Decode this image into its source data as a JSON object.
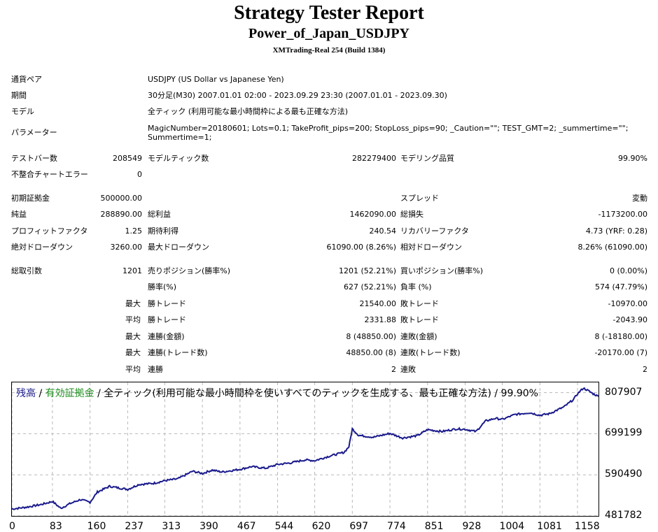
{
  "header": {
    "title": "Strategy Tester Report",
    "subtitle": "Power_of_Japan_USDJPY",
    "server": "XMTrading-Real 254 (Build 1384)"
  },
  "info": {
    "pair_label": "通貨ペア",
    "pair_value": "USDJPY (US Dollar vs Japanese Yen)",
    "period_label": "期間",
    "period_value": "30分足(M30) 2007.01.01 02:00 - 2023.09.29 23:30 (2007.01.01 - 2023.09.30)",
    "model_label": "モデル",
    "model_value": "全ティック (利用可能な最小時間枠による最も正確な方法)",
    "params_label": "パラメーター",
    "params_line1": "MagicNumber=20180601; Lots=0.1; TakeProfit_pips=200; StopLoss_pips=90; _Caution=\"\"; TEST_GMT=2; _summertime=\"\";",
    "params_line2": "Summertime=1;"
  },
  "stats": {
    "bars_label": "テストバー数",
    "bars_value": "208549",
    "ticks_label": "モデルティック数",
    "ticks_value": "282279400",
    "quality_label": "モデリング品質",
    "quality_value": "99.90%",
    "mismatch_label": "不整合チャートエラー",
    "mismatch_value": "0",
    "deposit_label": "初期証拠金",
    "deposit_value": "500000.00",
    "spread_label": "スプレッド",
    "spread_value": "変動",
    "net_label": "純益",
    "net_value": "288890.00",
    "gross_profit_label": "総利益",
    "gross_profit_value": "1462090.00",
    "gross_loss_label": "総損失",
    "gross_loss_value": "-1173200.00",
    "pf_label": "プロフィットファクタ",
    "pf_value": "1.25",
    "payoff_label": "期待利得",
    "payoff_value": "240.54",
    "recovery_label": "リカバリーファクタ",
    "recovery_value": "4.73 (YRF: 0.28)",
    "abs_dd_label": "絶対ドローダウン",
    "abs_dd_value": "3260.00",
    "max_dd_label": "最大ドローダウン",
    "max_dd_value": "61090.00 (8.26%)",
    "rel_dd_label": "相対ドローダウン",
    "rel_dd_value": "8.26% (61090.00)",
    "trades_label": "総取引数",
    "trades_value": "1201",
    "short_label": "売りポジション(勝率%)",
    "short_value": "1201 (52.21%)",
    "long_label": "買いポジション(勝率%)",
    "long_value": "0 (0.00%)",
    "win_label": "勝率(%)",
    "win_value": "627 (52.21%)",
    "loss_label": "負率 (%)",
    "loss_value": "574 (47.79%)",
    "max_word": "最大",
    "avg_word": "平均",
    "largest_win_label": "勝トレード",
    "largest_win_value": "21540.00",
    "largest_loss_label": "敗トレード",
    "largest_loss_value": "-10970.00",
    "avg_win_label": "勝トレード",
    "avg_win_value": "2331.88",
    "avg_loss_label": "敗トレード",
    "avg_loss_value": "-2043.90",
    "max_cons_win_label": "連勝(金額)",
    "max_cons_win_value": "8 (48850.00)",
    "max_cons_loss_label": "連敗(金額)",
    "max_cons_loss_value": "8 (-18180.00)",
    "max_cons_profit_label": "連勝(トレード数)",
    "max_cons_profit_value": "48850.00 (8)",
    "max_cons_lossamt_label": "連敗(トレード数)",
    "max_cons_lossamt_value": "-20170.00 (7)",
    "avg_cons_win_label": "連勝",
    "avg_cons_win_value": "2",
    "avg_cons_loss_label": "連敗",
    "avg_cons_loss_value": "2"
  },
  "chart_legend": {
    "balance": "残高",
    "sep1": " / ",
    "equity": "有効証拠金",
    "rest": " / 全ティック(利用可能な最小時間枠を使いすべてのティックを生成する、最も正確な方法) / 99.90%"
  },
  "colors": {
    "balance": "#1a1a8c",
    "equity": "#1f8f1f",
    "grid": "#b8b8b8"
  },
  "chart_data": {
    "type": "line",
    "y_ticks": [
      "807907",
      "699199",
      "590490",
      "481782"
    ],
    "x_ticks": [
      "0",
      "83",
      "160",
      "237",
      "313",
      "390",
      "467",
      "544",
      "620",
      "697",
      "774",
      "851",
      "928",
      "1004",
      "1081",
      "1158"
    ],
    "ylim": [
      481782,
      835000
    ],
    "xlim": [
      0,
      1201
    ],
    "series": [
      {
        "name": "残高",
        "x": [
          0,
          30,
          60,
          83,
          100,
          120,
          140,
          160,
          175,
          200,
          237,
          260,
          290,
          313,
          340,
          370,
          390,
          410,
          430,
          467,
          490,
          520,
          544,
          570,
          600,
          620,
          650,
          680,
          690,
          697,
          710,
          740,
          774,
          800,
          830,
          851,
          880,
          910,
          928,
          950,
          970,
          990,
          1004,
          1030,
          1060,
          1081,
          1100,
          1130,
          1150,
          1158,
          1170,
          1180,
          1190,
          1201
        ],
        "y": [
          500000,
          505000,
          512000,
          520000,
          502000,
          515000,
          525000,
          518000,
          545000,
          560000,
          552000,
          565000,
          568000,
          575000,
          580000,
          600000,
          594000,
          603000,
          598000,
          605000,
          612000,
          608000,
          618000,
          622000,
          630000,
          628000,
          640000,
          650000,
          665000,
          712000,
          695000,
          690000,
          700000,
          688000,
          694000,
          710000,
          705000,
          712000,
          711000,
          705000,
          733000,
          740000,
          737000,
          750000,
          755000,
          748000,
          752000,
          770000,
          790000,
          805000,
          820000,
          813000,
          805000,
          798000
        ]
      }
    ]
  }
}
